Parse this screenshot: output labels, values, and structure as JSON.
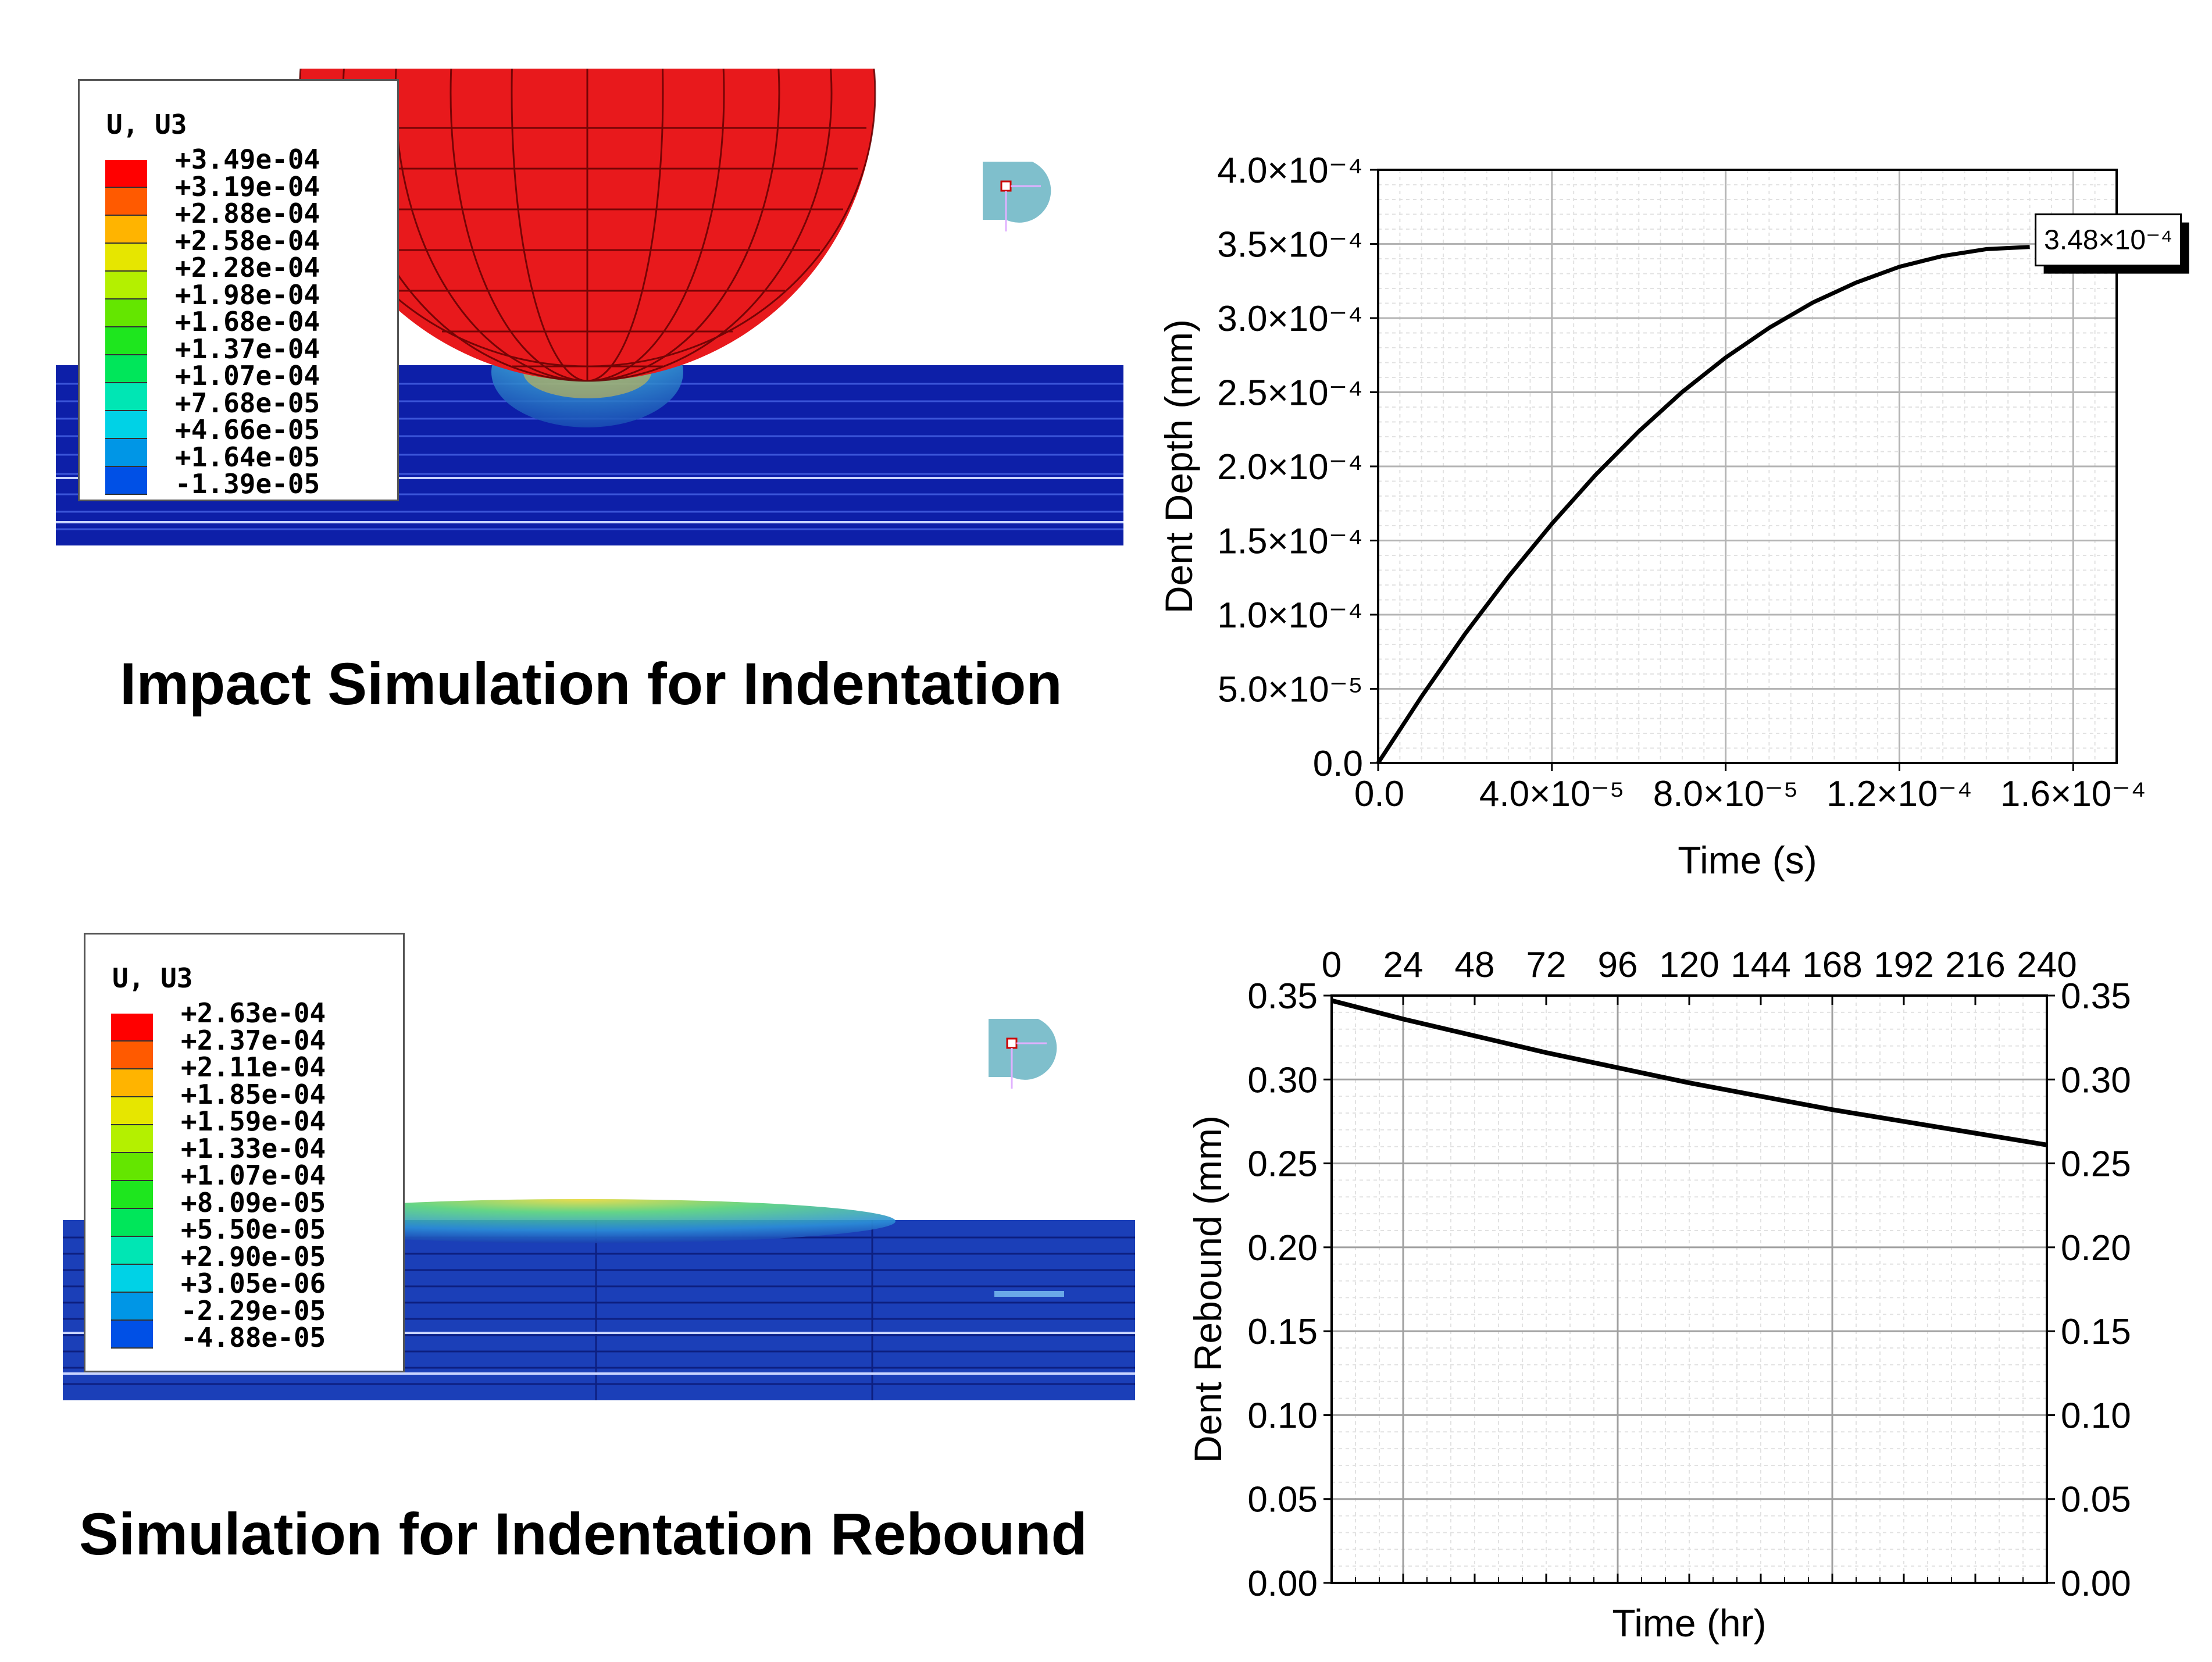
{
  "top_simulation": {
    "legend_title": "U, U3",
    "legend_values": [
      "+3.49e-04",
      "+3.19e-04",
      "+2.88e-04",
      "+2.58e-04",
      "+2.28e-04",
      "+1.98e-04",
      "+1.68e-04",
      "+1.37e-04",
      "+1.07e-04",
      "+7.68e-05",
      "+4.66e-05",
      "+1.64e-05",
      "-1.39e-05"
    ],
    "caption": "Impact Simulation for Indentation"
  },
  "bottom_simulation": {
    "legend_title": "U, U3",
    "legend_values": [
      "+2.63e-04",
      "+2.37e-04",
      "+2.11e-04",
      "+1.85e-04",
      "+1.59e-04",
      "+1.33e-04",
      "+1.07e-04",
      "+8.09e-05",
      "+5.50e-05",
      "+2.90e-05",
      "+3.05e-06",
      "-2.29e-05",
      "-4.88e-05"
    ],
    "caption": "Simulation for Indentation Rebound"
  },
  "contour_colors": [
    "#ff0000",
    "#ff5a00",
    "#ffb400",
    "#e6e600",
    "#b4f000",
    "#64e600",
    "#1ee61e",
    "#00e65a",
    "#00e6b4",
    "#00d2e6",
    "#0096e6",
    "#0050e6",
    "#0000dc"
  ],
  "chart_data": [
    {
      "type": "line",
      "title": "",
      "xlabel": "Time (s)",
      "ylabel": "Dent Depth (mm)",
      "xlim": [
        0,
        0.00017
      ],
      "ylim": [
        0,
        0.0004
      ],
      "x_ticks": [
        0,
        4e-05,
        8e-05,
        0.00012,
        0.00016
      ],
      "x_tick_labels": [
        "0.0",
        "4.0×10⁻⁵",
        "8.0×10⁻⁵",
        "1.2×10⁻⁴",
        "1.6×10⁻⁴"
      ],
      "y_ticks": [
        0,
        5e-05,
        0.0001,
        0.00015,
        0.0002,
        0.00025,
        0.0003,
        0.00035,
        0.0004
      ],
      "y_tick_labels": [
        "0.0",
        "5.0×10⁻⁵",
        "1.0×10⁻⁴",
        "1.5×10⁻⁴",
        "2.0×10⁻⁴",
        "2.5×10⁻⁴",
        "3.0×10⁻⁴",
        "3.5×10⁻⁴",
        "4.0×10⁻⁴"
      ],
      "series": [
        {
          "name": "Dent Depth",
          "x": [
            0,
            1e-05,
            2e-05,
            3e-05,
            4e-05,
            5e-05,
            6e-05,
            7e-05,
            8e-05,
            9e-05,
            0.0001,
            0.00011,
            0.00012,
            0.00013,
            0.00014,
            0.00015
          ],
          "y": [
            0,
            4.48e-05,
            8.7e-05,
            0.0001257,
            0.0001613,
            0.0001941,
            0.0002236,
            0.0002502,
            0.0002734,
            0.0002934,
            0.0003104,
            0.0003239,
            0.0003346,
            0.0003419,
            0.0003465,
            0.000348
          ]
        }
      ],
      "annotation": {
        "text": "3.48×10⁻⁴",
        "x": 0.00015,
        "y": 0.000348
      },
      "grid": true
    },
    {
      "type": "line",
      "title": "",
      "xlabel": "Time (hr)",
      "ylabel": "Dent Rebound (mm)",
      "xlim": [
        0,
        240
      ],
      "ylim": [
        0,
        0.35
      ],
      "x_ticks": [
        0,
        24,
        48,
        72,
        96,
        120,
        144,
        168,
        192,
        216,
        240
      ],
      "x_tick_labels": [
        "0",
        "24",
        "48",
        "72",
        "96",
        "120",
        "144",
        "168",
        "192",
        "216",
        "240"
      ],
      "x_labels_position": "top",
      "y_ticks": [
        0,
        0.05,
        0.1,
        0.15,
        0.2,
        0.25,
        0.3,
        0.35
      ],
      "y_tick_labels": [
        "0.00",
        "0.05",
        "0.10",
        "0.15",
        "0.20",
        "0.25",
        "0.30",
        "0.35"
      ],
      "y_labels_position": "both",
      "series": [
        {
          "name": "Dent Rebound",
          "x": [
            0,
            24,
            48,
            72,
            96,
            120,
            144,
            168,
            192,
            216,
            240
          ],
          "y": [
            0.347,
            0.336,
            0.326,
            0.316,
            0.307,
            0.298,
            0.29,
            0.282,
            0.275,
            0.268,
            0.261
          ]
        }
      ],
      "grid": true
    }
  ]
}
